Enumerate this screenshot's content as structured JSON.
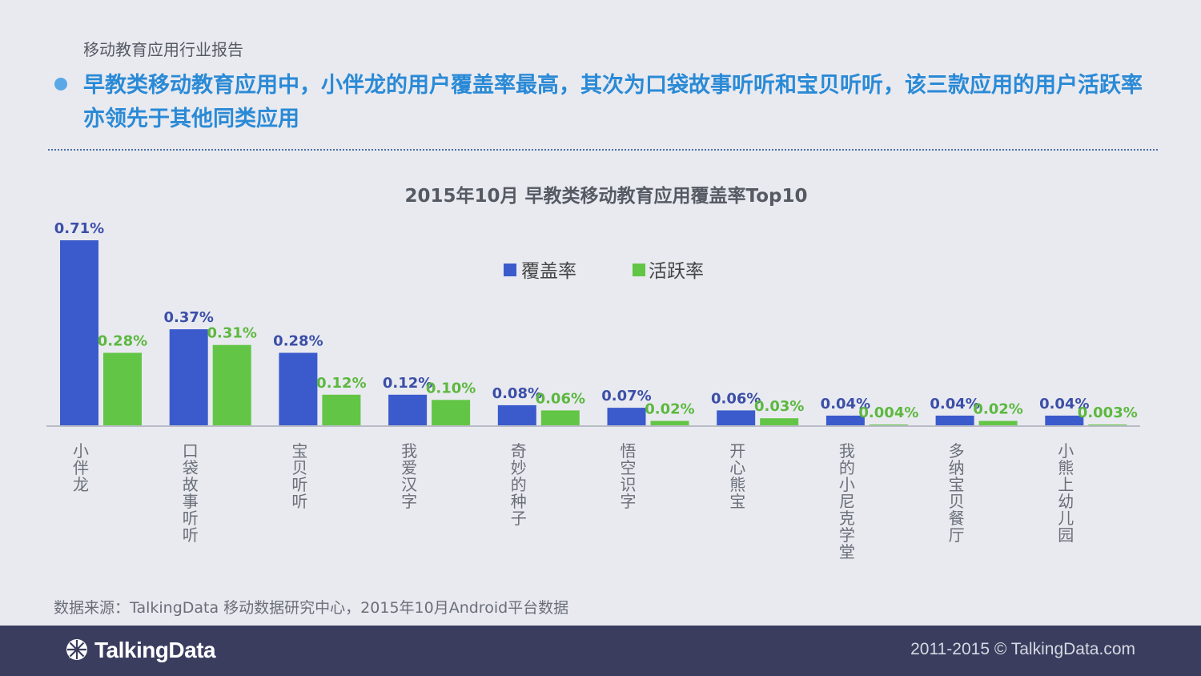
{
  "header": {
    "report_label": "移动教育应用行业报告",
    "headline": "早教类移动教育应用中，小伴龙的用户覆盖率最高，其次为口袋故事听听和宝贝听听，该三款应用的用户活跃率亦领先于其他同类应用"
  },
  "colors": {
    "coverage": "#3b5bcc",
    "active": "#62c545",
    "coverage_label": "#3b4fa8",
    "active_label": "#5cb83e",
    "headline": "#2a8ad6"
  },
  "chart_data": {
    "type": "bar",
    "title": "2015年10月  早教类移动教育应用覆盖率Top10",
    "categories": [
      "小伴龙",
      "口袋故事听听",
      "宝贝听听",
      "我爱汉字",
      "奇妙的种子",
      "悟空识字",
      "开心熊宝",
      "我的小尼克学堂",
      "多纳宝贝餐厅",
      "小熊上幼儿园"
    ],
    "series": [
      {
        "name": "覆盖率",
        "values": [
          0.71,
          0.37,
          0.28,
          0.12,
          0.08,
          0.07,
          0.06,
          0.04,
          0.04,
          0.04
        ],
        "labels": [
          "0.71%",
          "0.37%",
          "0.28%",
          "0.12%",
          "0.08%",
          "0.07%",
          "0.06%",
          "0.04%",
          "0.04%",
          "0.04%"
        ]
      },
      {
        "name": "活跃率",
        "values": [
          0.28,
          0.31,
          0.12,
          0.1,
          0.06,
          0.02,
          0.03,
          0.004,
          0.02,
          0.003
        ],
        "labels": [
          "0.28%",
          "0.31%",
          "0.12%",
          "0.10%",
          "0.06%",
          "0.02%",
          "0.03%",
          "0.004%",
          "0.02%",
          "0.003%"
        ]
      }
    ],
    "xlabel": "",
    "ylabel": "",
    "ylim": [
      0,
      0.71
    ],
    "legend_position": "top-center",
    "grid": false
  },
  "source_note": "数据来源：TalkingData 移动数据研究中心，2015年10月Android平台数据",
  "footer": {
    "logo_text": "TalkingData",
    "logo_icon": "talkingdata-logo-icon",
    "copyright": "2011-2015 © TalkingData.com"
  }
}
